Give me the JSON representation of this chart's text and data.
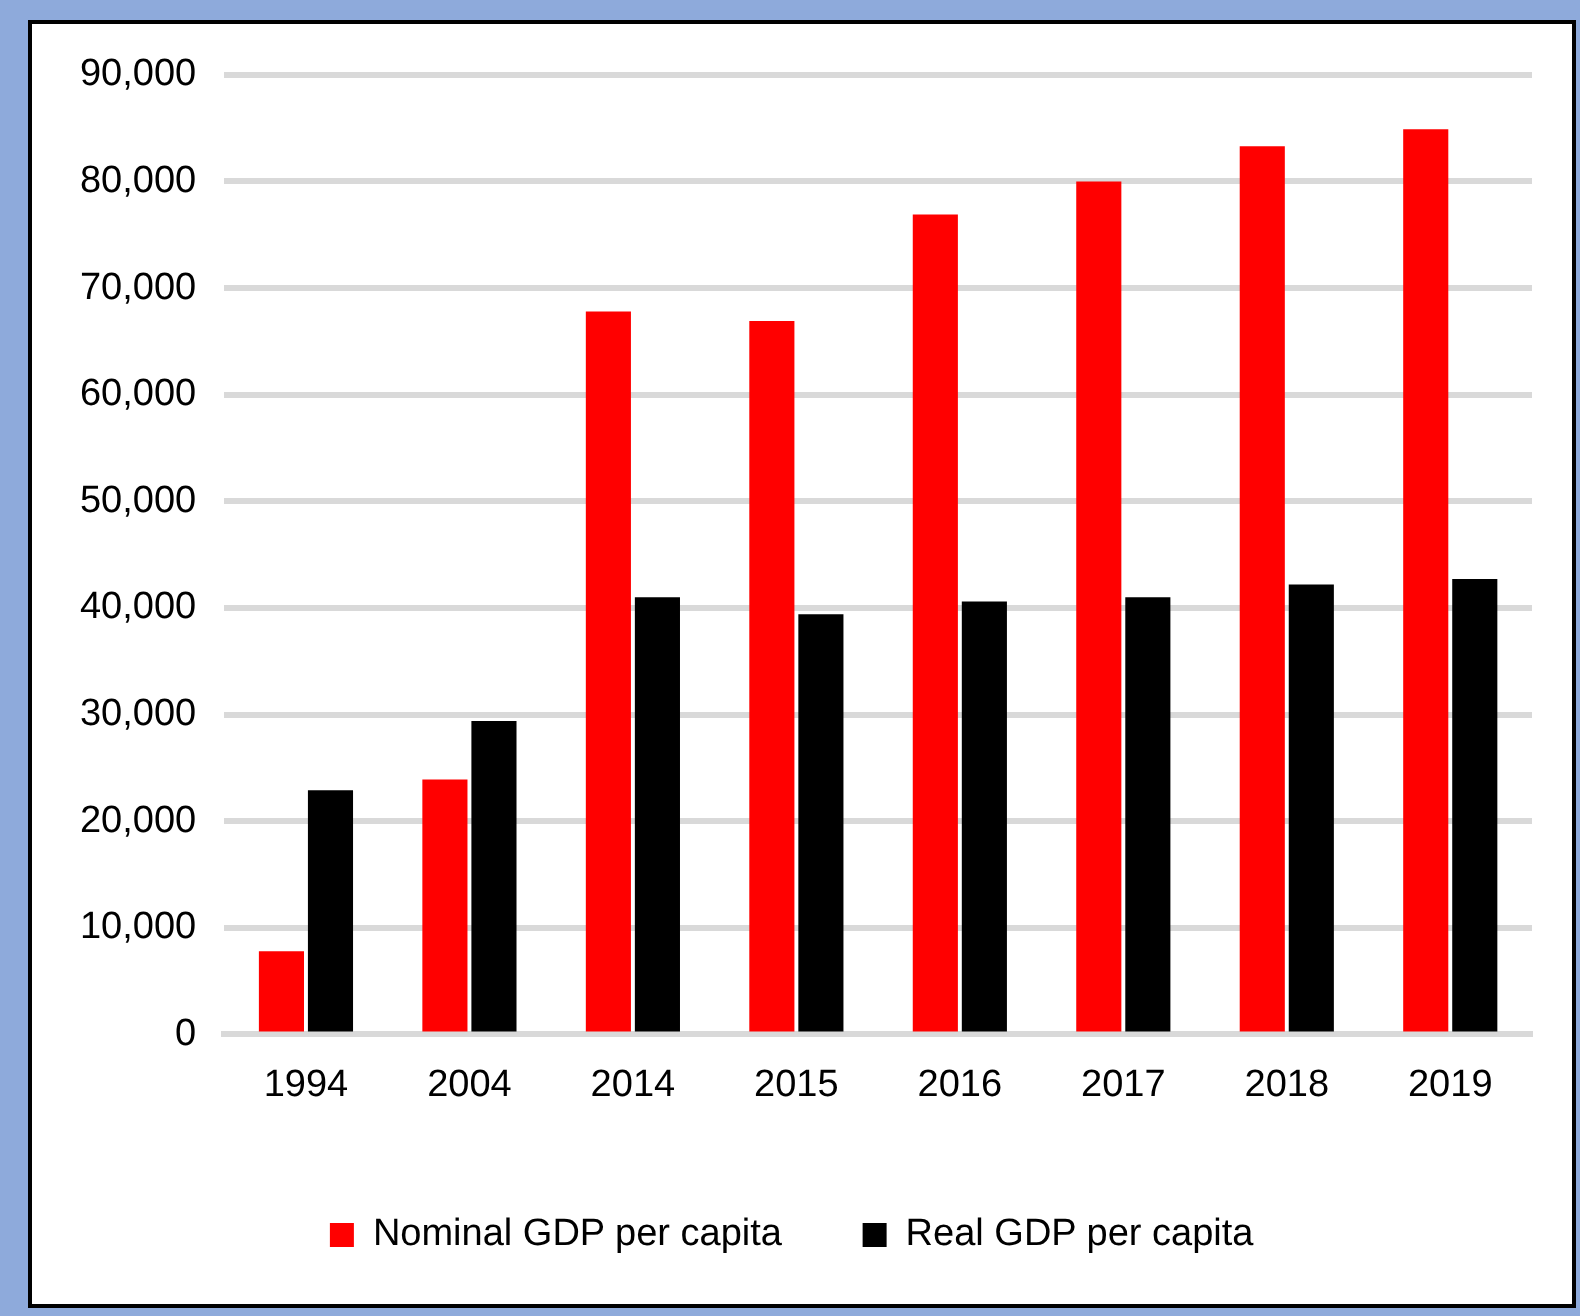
{
  "chart_data": {
    "type": "bar",
    "categories": [
      "1994",
      "2004",
      "2014",
      "2015",
      "2016",
      "2017",
      "2018",
      "2019"
    ],
    "series": [
      {
        "name": "Nominal GDP per capita",
        "color": "#ff0000",
        "values": [
          7800,
          23900,
          67800,
          66900,
          76900,
          80000,
          83300,
          84900
        ]
      },
      {
        "name": "Real GDP per capita",
        "color": "#000000",
        "values": [
          22900,
          29400,
          41000,
          39400,
          40600,
          41000,
          42200,
          42700
        ]
      }
    ],
    "ylim": [
      0,
      90000
    ],
    "yticks": [
      {
        "value": 0,
        "label": "0"
      },
      {
        "value": 10000,
        "label": "10,000"
      },
      {
        "value": 20000,
        "label": "20,000"
      },
      {
        "value": 30000,
        "label": "30,000"
      },
      {
        "value": 40000,
        "label": "40,000"
      },
      {
        "value": 50000,
        "label": "50,000"
      },
      {
        "value": 60000,
        "label": "60,000"
      },
      {
        "value": 70000,
        "label": "70,000"
      },
      {
        "value": 80000,
        "label": "80,000"
      },
      {
        "value": 90000,
        "label": "90,000"
      }
    ],
    "grid": "y",
    "legend": "bottom"
  }
}
